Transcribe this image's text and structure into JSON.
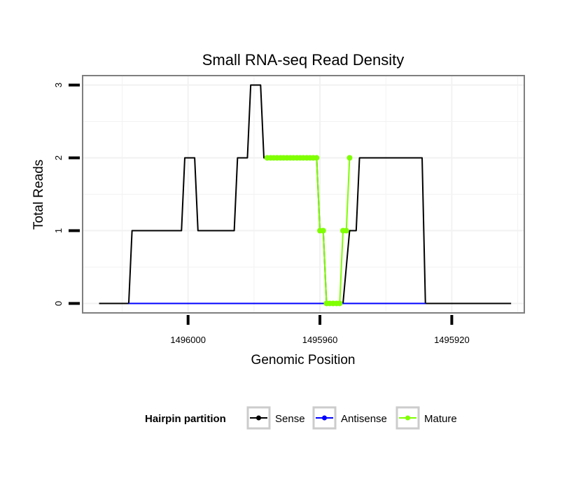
{
  "chart_data": {
    "type": "line",
    "title": "Small RNA-seq Read Density",
    "xlabel": "Genomic Position",
    "ylabel": "Total Reads",
    "x_reversed": true,
    "xlim": [
      1496032,
      1495898
    ],
    "ylim": [
      -0.13,
      3.13
    ],
    "xticks": [
      1496000,
      1495960,
      1495920
    ],
    "xtick_labels": [
      "1496000",
      "1495960",
      "1495920"
    ],
    "yticks": [
      0,
      1,
      2,
      3
    ],
    "ytick_labels": [
      "0",
      "1",
      "2",
      "3"
    ],
    "grid": true,
    "legend_position": "bottom",
    "legend_title": "Hairpin partition",
    "series": [
      {
        "name": "Sense",
        "color": "#000000",
        "x": [
          1496027,
          1496018,
          1496017,
          1496002,
          1496001,
          1495998,
          1495997,
          1495986,
          1495985,
          1495982,
          1495981,
          1495978,
          1495977,
          1495972,
          1495961,
          1495960,
          1495959,
          1495958,
          1495953,
          1495951,
          1495949,
          1495948,
          1495936,
          1495935,
          1495934,
          1495929,
          1495928,
          1495902
        ],
        "y": [
          0,
          0,
          1,
          1,
          2,
          2,
          1,
          1,
          2,
          2,
          3,
          3,
          2,
          2,
          2,
          1,
          1,
          0,
          0,
          1,
          1,
          2,
          2,
          2,
          2,
          2,
          0,
          0
        ]
      },
      {
        "name": "Antisense",
        "color": "#0000ff",
        "x": [
          1496018,
          1495928
        ],
        "y": [
          0,
          0
        ]
      },
      {
        "name": "Mature",
        "color": "#7fff00",
        "x": [
          1495976,
          1495975,
          1495974,
          1495973,
          1495972,
          1495971,
          1495970,
          1495969,
          1495968,
          1495967,
          1495966,
          1495965,
          1495964,
          1495963,
          1495962,
          1495961,
          1495960,
          1495959,
          1495958,
          1495957,
          1495956,
          1495955,
          1495954,
          1495953,
          1495952,
          1495951
        ],
        "y": [
          2,
          2,
          2,
          2,
          2,
          2,
          2,
          2,
          2,
          2,
          2,
          2,
          2,
          2,
          2,
          2,
          1,
          1,
          0,
          0,
          0,
          0,
          0,
          1,
          1,
          2
        ],
        "show_points": true
      }
    ]
  }
}
